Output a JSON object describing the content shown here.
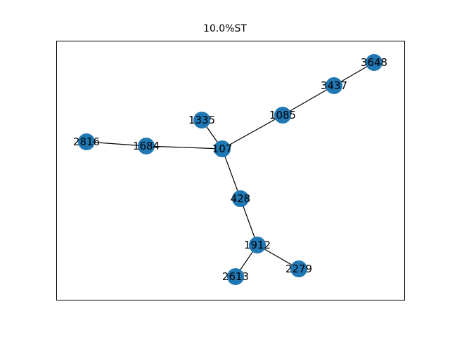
{
  "title": "10.0%ST",
  "colors": {
    "node": "#1f77b4",
    "edge": "#000000",
    "frame": "#000000",
    "label": "#000000"
  },
  "graph": {
    "nodes": [
      {
        "id": "3648"
      },
      {
        "id": "3437"
      },
      {
        "id": "1335"
      },
      {
        "id": "1085"
      },
      {
        "id": "2816"
      },
      {
        "id": "1684"
      },
      {
        "id": "107"
      },
      {
        "id": "428"
      },
      {
        "id": "1912"
      },
      {
        "id": "2279"
      },
      {
        "id": "2613"
      }
    ],
    "edges": [
      [
        "3648",
        "3437"
      ],
      [
        "3437",
        "1085"
      ],
      [
        "1085",
        "107"
      ],
      [
        "1335",
        "107"
      ],
      [
        "2816",
        "1684"
      ],
      [
        "1684",
        "107"
      ],
      [
        "107",
        "428"
      ],
      [
        "428",
        "1912"
      ],
      [
        "1912",
        "2279"
      ],
      [
        "1912",
        "2613"
      ]
    ]
  }
}
